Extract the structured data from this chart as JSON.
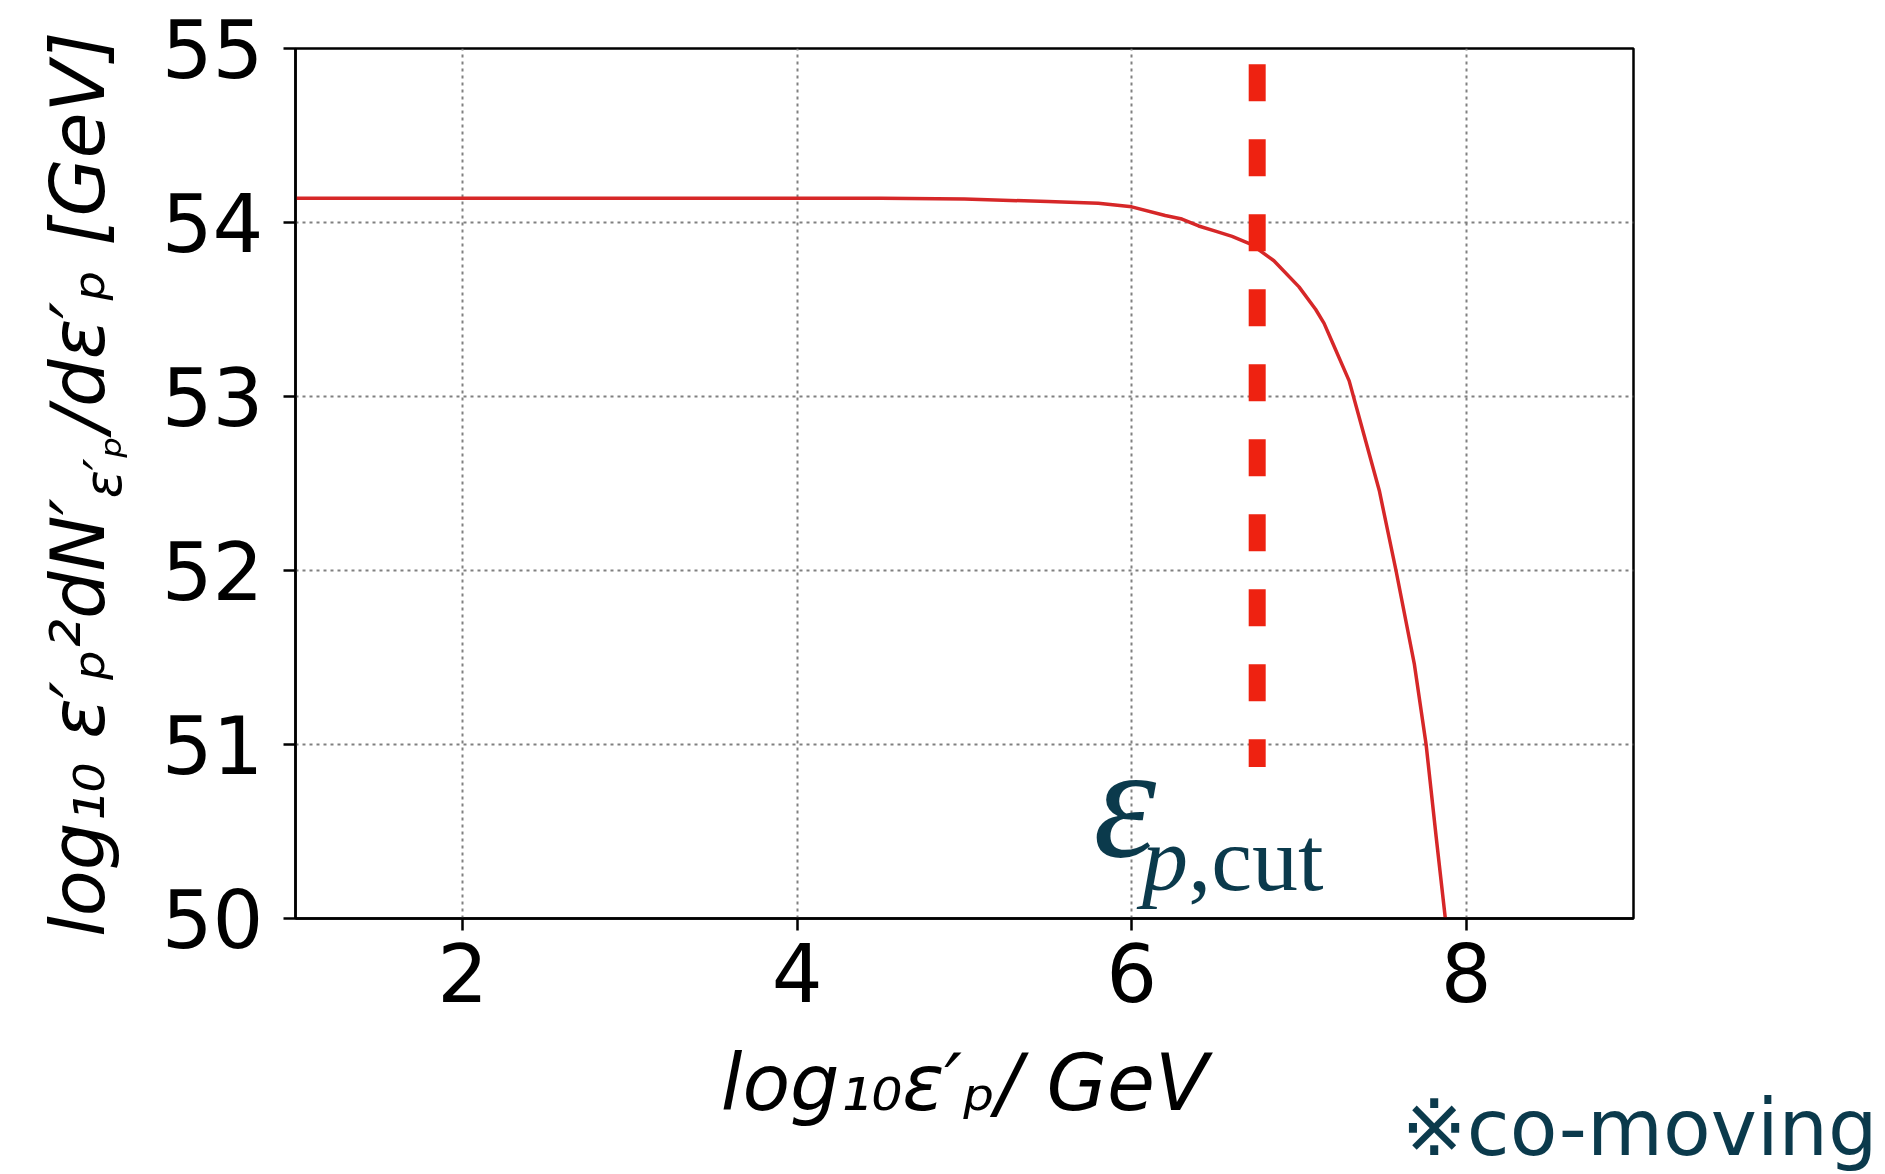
{
  "chart_data": {
    "type": "line",
    "xlabel": "log₁₀ε′ₚ/ GeV",
    "ylabel": "log₁₀ ε′ₚ²dN′$_{ε′ₚ}$/dε′ₚ [GeV]",
    "x": [
      1,
      2,
      3,
      4,
      4.5,
      5,
      5.5,
      5.8,
      6,
      6.2,
      6.3,
      6.4,
      6.5,
      6.6,
      6.7,
      6.75,
      6.85,
      7.0,
      7.1,
      7.15,
      7.2,
      7.3,
      7.4,
      7.48,
      7.58,
      7.69,
      7.76,
      7.82,
      7.875
    ],
    "series": [
      {
        "color": "#d62728",
        "values": [
          54.14,
          54.14,
          54.14,
          54.14,
          54.14,
          54.135,
          54.12,
          54.11,
          54.09,
          54.04,
          54.02,
          53.98,
          53.95,
          53.92,
          53.88,
          53.85,
          53.78,
          53.63,
          53.5,
          53.42,
          53.31,
          53.09,
          52.74,
          52.46,
          52.0,
          51.46,
          51.0,
          50.47,
          50.0
        ]
      }
    ],
    "xlim": [
      1,
      9
    ],
    "ylim": [
      50,
      55
    ],
    "xticks": [
      2,
      4,
      6,
      8
    ],
    "yticks": [
      50,
      51,
      52,
      53,
      54,
      55
    ],
    "grid": true,
    "ref_lines": [
      {
        "axis": "x",
        "value": 6.75,
        "label": "ε$_{p,cut}$",
        "color": "#ee2211",
        "line_style": "dashed"
      }
    ],
    "annotations": [
      "※co-moving"
    ]
  }
}
